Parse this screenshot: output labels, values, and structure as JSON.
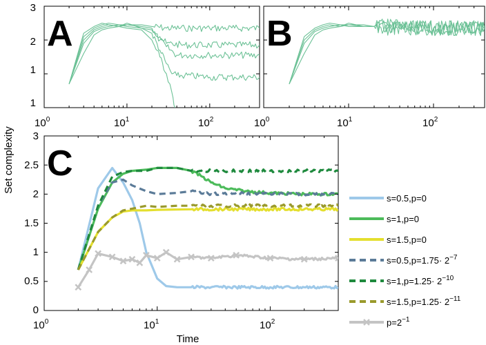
{
  "chart_data": [
    {
      "panel": "A",
      "type": "line",
      "xscale": "log",
      "xlim": [
        1,
        400
      ],
      "ylim": [
        0,
        3
      ],
      "xtick_labels": [
        "10",
        "10",
        "10"
      ],
      "xtick_exponents": [
        "0",
        "1",
        "2"
      ],
      "ytick_labels": [
        "1",
        "2",
        "3"
      ],
      "color": "#6cc196",
      "series": [
        {
          "name": "trajectory 1",
          "x": [
            2,
            3,
            4,
            5,
            6,
            8,
            10,
            15,
            20,
            30,
            50,
            100,
            200,
            400
          ],
          "y": [
            0.7,
            1.6,
            2.15,
            2.3,
            2.35,
            2.4,
            2.45,
            2.45,
            2.4,
            2.35,
            2.35,
            2.35,
            2.35,
            2.35
          ]
        },
        {
          "name": "trajectory 2",
          "x": [
            2,
            3,
            4,
            5,
            6,
            8,
            10,
            15,
            20,
            25,
            30,
            50,
            100,
            200,
            400
          ],
          "y": [
            0.7,
            1.9,
            2.25,
            2.35,
            2.4,
            2.45,
            2.45,
            2.4,
            2.35,
            2.1,
            1.9,
            1.85,
            1.85,
            1.85,
            1.85
          ]
        },
        {
          "name": "trajectory 3",
          "x": [
            2,
            3,
            4,
            5,
            6,
            8,
            10,
            15,
            20,
            25,
            30,
            40,
            50,
            100,
            200,
            400
          ],
          "y": [
            0.7,
            2.0,
            2.3,
            2.4,
            2.45,
            2.4,
            2.5,
            2.35,
            2.3,
            2.0,
            1.8,
            1.55,
            1.55,
            1.55,
            1.55,
            1.55
          ]
        },
        {
          "name": "trajectory 4",
          "x": [
            2,
            3,
            4,
            5,
            6,
            8,
            10,
            15,
            20,
            25,
            30,
            35,
            40,
            50,
            100,
            200,
            400
          ],
          "y": [
            0.7,
            2.1,
            2.35,
            2.45,
            2.5,
            2.45,
            2.4,
            2.35,
            2.2,
            1.7,
            1.3,
            1.0,
            0.95,
            0.95,
            0.9,
            0.9,
            0.9
          ]
        },
        {
          "name": "trajectory 5",
          "x": [
            2,
            3,
            4,
            5,
            6,
            8,
            10,
            15,
            20,
            25,
            30,
            33,
            36,
            38
          ],
          "y": [
            0.7,
            2.2,
            2.4,
            2.5,
            2.45,
            2.4,
            2.35,
            2.3,
            2.0,
            1.5,
            1.0,
            0.7,
            0.3,
            0.0
          ]
        }
      ]
    },
    {
      "panel": "B",
      "type": "line",
      "xscale": "log",
      "xlim": [
        1,
        400
      ],
      "ylim": [
        0,
        3
      ],
      "xtick_labels": [
        "10",
        "10",
        "10"
      ],
      "xtick_exponents": [
        "0",
        "1",
        "2"
      ],
      "color": "#6cc196",
      "series": [
        {
          "name": "trajectory 1",
          "x": [
            2,
            3,
            4,
            5,
            6,
            8,
            10,
            15,
            20,
            30,
            50,
            100,
            200,
            400
          ],
          "y": [
            0.7,
            1.6,
            2.15,
            2.3,
            2.35,
            2.4,
            2.45,
            2.45,
            2.4,
            2.35,
            2.35,
            2.35,
            2.35,
            2.35
          ]
        },
        {
          "name": "trajectory 2",
          "x": [
            2,
            3,
            4,
            5,
            6,
            8,
            10,
            15,
            20,
            30,
            50,
            100,
            200,
            400
          ],
          "y": [
            0.7,
            1.9,
            2.25,
            2.35,
            2.4,
            2.45,
            2.45,
            2.4,
            2.4,
            2.35,
            2.35,
            2.35,
            2.35,
            2.35
          ]
        },
        {
          "name": "trajectory 3",
          "x": [
            2,
            3,
            4,
            5,
            6,
            8,
            10,
            15,
            20,
            30,
            50,
            100,
            200,
            400
          ],
          "y": [
            0.7,
            2.0,
            2.3,
            2.4,
            2.45,
            2.4,
            2.5,
            2.4,
            2.4,
            2.4,
            2.35,
            2.35,
            2.35,
            2.35
          ]
        },
        {
          "name": "trajectory 4",
          "x": [
            2,
            3,
            4,
            5,
            6,
            8,
            10,
            15,
            20,
            30,
            50,
            100,
            200,
            400
          ],
          "y": [
            0.7,
            2.1,
            2.35,
            2.45,
            2.5,
            2.45,
            2.4,
            2.4,
            2.4,
            2.35,
            2.35,
            2.35,
            2.35,
            2.35
          ]
        }
      ]
    },
    {
      "panel": "C",
      "type": "line",
      "xscale": "log",
      "xlim": [
        1,
        400
      ],
      "ylim": [
        0,
        3
      ],
      "xlabel": "Time",
      "ylabel": "Set complexity",
      "xtick_labels": [
        "10",
        "10",
        "10"
      ],
      "xtick_exponents": [
        "0",
        "1",
        "2"
      ],
      "ytick_labels": [
        "0",
        "0.5",
        "1",
        "1.5",
        "2",
        "2.5",
        "3"
      ],
      "series": [
        {
          "name": "s=0.5,p=0",
          "color": "#9ec9e9",
          "style": "solid",
          "x": [
            2,
            3,
            4,
            5,
            6,
            7,
            8,
            10,
            12,
            15,
            20,
            30,
            50,
            100,
            200,
            400
          ],
          "y": [
            0.7,
            2.1,
            2.45,
            2.2,
            1.9,
            1.5,
            1.0,
            0.55,
            0.42,
            0.4,
            0.4,
            0.4,
            0.4,
            0.4,
            0.4,
            0.4
          ]
        },
        {
          "name": "s=1,p=0",
          "color": "#4cbb5a",
          "style": "solid",
          "x": [
            2,
            3,
            4,
            5,
            6,
            8,
            10,
            15,
            20,
            25,
            30,
            40,
            60,
            100,
            200,
            400
          ],
          "y": [
            0.7,
            1.75,
            2.2,
            2.35,
            2.4,
            2.42,
            2.45,
            2.45,
            2.4,
            2.3,
            2.2,
            2.1,
            2.05,
            2.02,
            2.0,
            2.0
          ]
        },
        {
          "name": "s=1.5,p=0",
          "color": "#e4df2e",
          "style": "solid",
          "x": [
            2,
            3,
            4,
            5,
            6,
            8,
            10,
            20,
            50,
            100,
            200,
            400
          ],
          "y": [
            0.7,
            1.35,
            1.6,
            1.7,
            1.72,
            1.72,
            1.73,
            1.74,
            1.74,
            1.74,
            1.74,
            1.74
          ]
        },
        {
          "name": "s=0.5,p=1.75· 2",
          "exponent": "−7",
          "color": "#5b7b98",
          "style": "dashed",
          "x": [
            2,
            3,
            4,
            5,
            6,
            8,
            10,
            15,
            20,
            30,
            50,
            100,
            200,
            400
          ],
          "y": [
            0.7,
            1.8,
            2.2,
            2.25,
            2.15,
            2.05,
            2.0,
            2.02,
            2.05,
            2.0,
            2.02,
            2.0,
            2.0,
            2.0
          ]
        },
        {
          "name": "s=1,p=1.25· 2",
          "exponent": "−10",
          "color": "#1f8a3e",
          "style": "dashed",
          "x": [
            2,
            3,
            4,
            5,
            6,
            8,
            10,
            15,
            20,
            30,
            50,
            100,
            200,
            400
          ],
          "y": [
            0.7,
            1.8,
            2.3,
            2.38,
            2.4,
            2.4,
            2.45,
            2.45,
            2.4,
            2.4,
            2.4,
            2.4,
            2.4,
            2.4
          ]
        },
        {
          "name": "s=1.5,p=1.25· 2",
          "exponent": "−11",
          "color": "#9a9a2c",
          "style": "dashed",
          "x": [
            2,
            3,
            4,
            5,
            6,
            8,
            10,
            15,
            20,
            30,
            50,
            100,
            200,
            400
          ],
          "y": [
            0.7,
            1.35,
            1.6,
            1.72,
            1.75,
            1.8,
            1.78,
            1.8,
            1.8,
            1.8,
            1.8,
            1.8,
            1.8,
            1.8
          ]
        },
        {
          "name": "p=2",
          "exponent": "−1",
          "color": "#c4c4c4",
          "style": "solid-x",
          "x": [
            2,
            2.5,
            3,
            4,
            5,
            6,
            7,
            8,
            10,
            12,
            15,
            20,
            30,
            50,
            100,
            200,
            400
          ],
          "y": [
            0.4,
            0.7,
            0.98,
            0.92,
            0.85,
            0.88,
            0.82,
            0.95,
            0.9,
            1.0,
            0.88,
            0.92,
            0.9,
            0.95,
            0.9,
            0.88,
            0.9
          ]
        }
      ]
    }
  ]
}
